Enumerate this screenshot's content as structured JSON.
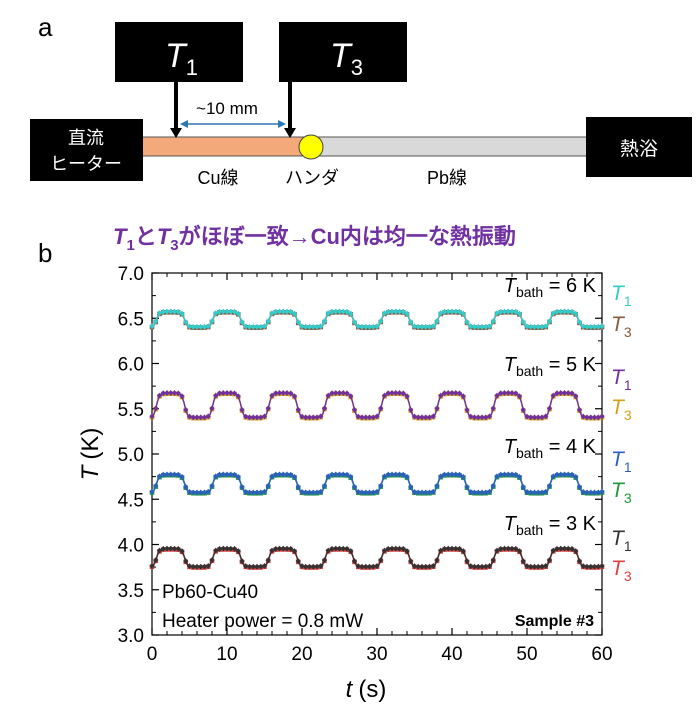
{
  "panel_a": {
    "label": "a",
    "probe_left": {
      "symbol": "T",
      "subscript": "1"
    },
    "probe_right": {
      "symbol": "T",
      "subscript": "3"
    },
    "distance_label": "~10 mm",
    "heater_line1": "直流",
    "heater_line2": "ヒーター",
    "bath_label": "熱浴",
    "cu_label": "Cu線",
    "solder_label": "ハンダ",
    "pb_label": "Pb線",
    "colors": {
      "cu_wire": "#f4a97a",
      "pb_wire": "#d9d9d9",
      "solder": "#ffff00",
      "box": "#000000",
      "arrow": "#2e75b6"
    }
  },
  "panel_b": {
    "label": "b",
    "headline_t1": "T",
    "headline_sub1": "1",
    "headline_mid": "と",
    "headline_t3": "T",
    "headline_sub3": "3",
    "headline_rest": "がほぼ一致→Cu内は均一な熱振動",
    "headline_color": "#7030a0",
    "sample_line1": "Pb60-Cu40",
    "sample_line2": "Heater power = 0.8 mW",
    "sample_id": "Sample #3"
  },
  "chart_data": {
    "type": "line",
    "xlabel_symbol": "t",
    "xlabel_unit": "(s)",
    "ylabel_symbol": "T",
    "ylabel_unit": "(K)",
    "xlim": [
      0,
      60
    ],
    "ylim": [
      3.0,
      7.0
    ],
    "xticks": [
      "0",
      "10",
      "20",
      "30",
      "40",
      "50",
      "60"
    ],
    "yticks": [
      "3.0",
      "3.5",
      "4.0",
      "4.5",
      "5.0",
      "5.5",
      "6.0",
      "6.5",
      "7.0"
    ],
    "xtick_values": [
      0,
      10,
      20,
      30,
      40,
      50,
      60
    ],
    "ytick_values": [
      3.0,
      3.5,
      4.0,
      4.5,
      5.0,
      5.5,
      6.0,
      6.5,
      7.0
    ],
    "oscillation_period_s": 7.5,
    "datasets": [
      {
        "bath_label": "T",
        "bath_sub": "bath",
        "bath_value": " = 6 K",
        "min": 6.4,
        "max": 6.57,
        "t1_color": "#33cccc",
        "t3_color": "#8b5a3c",
        "series": [
          {
            "name": "T1",
            "symbol": "T",
            "sub": "1",
            "marker": "diamond"
          },
          {
            "name": "T3",
            "symbol": "T",
            "sub": "3",
            "marker": "square"
          }
        ]
      },
      {
        "bath_label": "T",
        "bath_sub": "bath",
        "bath_value": " = 5 K",
        "min": 5.4,
        "max": 5.67,
        "t1_color": "#7030a0",
        "t3_color": "#d4a017",
        "series": [
          {
            "name": "T1",
            "symbol": "T",
            "sub": "1",
            "marker": "diamond"
          },
          {
            "name": "T3",
            "symbol": "T",
            "sub": "3",
            "marker": "square"
          }
        ]
      },
      {
        "bath_label": "T",
        "bath_sub": "bath",
        "bath_value": " = 4 K",
        "min": 4.57,
        "max": 4.77,
        "t1_color": "#2e5fbf",
        "t3_color": "#1d9a3c",
        "series": [
          {
            "name": "T1",
            "symbol": "T",
            "sub": "1",
            "marker": "diamond"
          },
          {
            "name": "T3",
            "symbol": "T",
            "sub": "3",
            "marker": "square"
          }
        ]
      },
      {
        "bath_label": "T",
        "bath_sub": "bath",
        "bath_value": " = 3 K",
        "min": 3.75,
        "max": 3.95,
        "t1_color": "#333333",
        "t3_color": "#e04040",
        "series": [
          {
            "name": "T1",
            "symbol": "T",
            "sub": "1",
            "marker": "diamond"
          },
          {
            "name": "T3",
            "symbol": "T",
            "sub": "3",
            "marker": "square"
          }
        ]
      }
    ]
  }
}
